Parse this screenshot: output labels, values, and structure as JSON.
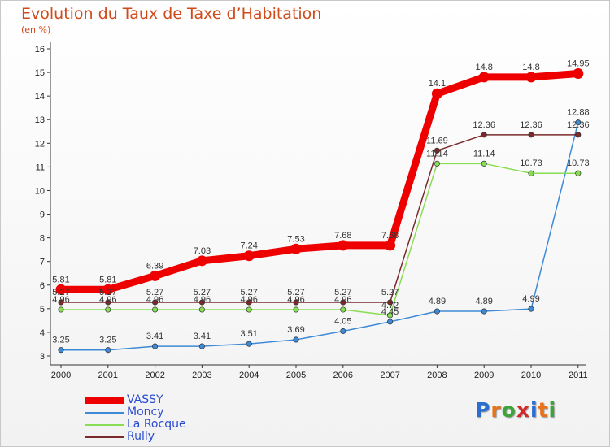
{
  "title": "Evolution du Taux de Taxe d’Habitation",
  "unit_label": "(en %)",
  "logo_text": "Proxiti",
  "chart_data": {
    "type": "line",
    "title": "Evolution du Taux de Taxe d’Habitation",
    "ylabel": "(en %)",
    "xlabel": "",
    "ylim": [
      3,
      16
    ],
    "yticks": [
      3,
      4,
      5,
      6,
      7,
      8,
      9,
      10,
      11,
      12,
      13,
      14,
      15,
      16
    ],
    "grid": false,
    "legend_position": "bottom-left",
    "categories": [
      "2000",
      "2001",
      "2002",
      "2003",
      "2004",
      "2005",
      "2006",
      "2007",
      "2008",
      "2009",
      "2010",
      "2011"
    ],
    "series": [
      {
        "name": "VASSY",
        "color": "#ee0000",
        "values": [
          5.81,
          5.81,
          6.39,
          7.03,
          7.24,
          7.53,
          7.68,
          7.68,
          14.1,
          14.8,
          14.8,
          14.95
        ],
        "labels": [
          "5.81",
          "5.81",
          "6.39",
          "7.03",
          "7.24",
          "7.53",
          "7.68",
          "7.68",
          "14.1",
          "14.8",
          "14.8",
          "14.95"
        ]
      },
      {
        "name": "Moncy",
        "color": "#3d8ad6",
        "values": [
          3.25,
          3.25,
          3.41,
          3.41,
          3.51,
          3.69,
          4.05,
          4.45,
          4.89,
          4.89,
          4.99,
          12.88
        ],
        "labels": [
          "3.25",
          "3.25",
          "3.41",
          "3.41",
          "3.51",
          "3.69",
          "4.05",
          "4.45",
          "4.89",
          "4.89",
          "4.99",
          "12.88"
        ]
      },
      {
        "name": "La Rocque",
        "color": "#88dd55",
        "values": [
          4.96,
          4.96,
          4.96,
          4.96,
          4.96,
          4.96,
          4.96,
          4.72,
          11.14,
          11.14,
          10.73,
          10.73
        ],
        "labels": [
          "4.96",
          "4.96",
          "4.96",
          "4.96",
          "4.96",
          "4.96",
          "4.96",
          "4.72",
          "11.14",
          "11.14",
          "10.73",
          "10.73"
        ]
      },
      {
        "name": "Rully",
        "color": "#7a2a2a",
        "values": [
          5.27,
          5.27,
          5.27,
          5.27,
          5.27,
          5.27,
          5.27,
          5.27,
          11.69,
          12.36,
          12.36,
          12.36
        ],
        "labels": [
          "5.27",
          "5.27",
          "5.27",
          "5.27",
          "5.27",
          "5.27",
          "5.27",
          "5.27",
          "11.69",
          "12.36",
          "12.36",
          "12.36"
        ]
      }
    ]
  }
}
